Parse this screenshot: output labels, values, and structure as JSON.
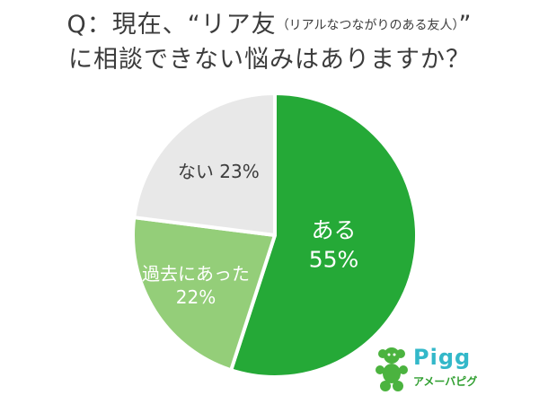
{
  "title": {
    "line1_main": "Q：現在、“リア友",
    "line1_sub": "（リアルなつながりのある友人）",
    "line1_close": "”",
    "line2": "に相談できない悩みはありますか？"
  },
  "chart_data": {
    "type": "pie",
    "slices": [
      {
        "label": "ある",
        "value": 55,
        "value_text": "55%",
        "color": "#25a937"
      },
      {
        "label": "過去にあった",
        "value": 22,
        "value_text": "22%",
        "color": "#94ce79"
      },
      {
        "label": "ない",
        "value": 23,
        "value_text": "23%",
        "color": "#e8e8e8"
      }
    ],
    "start": "12 o'clock",
    "direction": "clockwise",
    "legend": "none"
  },
  "logo": {
    "wordmark": "Pigg",
    "subtext": "アメーバピグ",
    "colors": {
      "wordmark": "#33b8c9",
      "figure": "#4bb33f",
      "subtext": "#2f9e2f"
    }
  }
}
